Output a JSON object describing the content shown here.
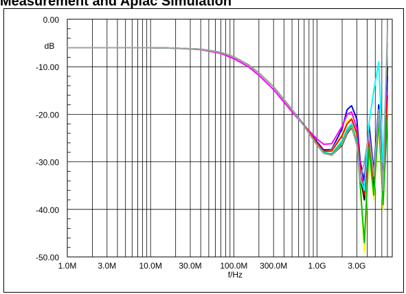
{
  "title": "Measurement and Aplac Simulation",
  "chart_data": {
    "type": "line",
    "xlabel": "f/Hz",
    "ylabel": "dB",
    "xscale": "log",
    "xlim": [
      1000000,
      8000000000
    ],
    "ylim": [
      -50,
      0
    ],
    "grid": true,
    "x_tick_labels": [
      "1.0M",
      "3.0M",
      "10.0M",
      "30.0M",
      "100.0M",
      "300.0M",
      "1.0G",
      "3.0G"
    ],
    "x_ticks": [
      1000000,
      3000000,
      10000000,
      30000000,
      100000000,
      300000000,
      1000000000,
      3000000000
    ],
    "y_tick_labels": [
      "0.00",
      "-10.00",
      "-20.00",
      "-30.00",
      "-40.00",
      "-50.00"
    ],
    "y_ticks": [
      0,
      -10,
      -20,
      -30,
      -40,
      -50
    ],
    "series": [
      {
        "color": "#000000",
        "x": [
          1000000,
          10000000,
          20000000,
          40000000,
          70000000,
          100000000,
          150000000,
          200000000,
          300000000,
          500000000,
          700000000,
          1000000000,
          1200000000,
          1500000000,
          2000000000,
          2300000000,
          2600000000,
          3000000000,
          3300000000,
          3700000000,
          4200000000,
          4800000000,
          5500000000,
          6200000000,
          7000000000
        ],
        "y": [
          -6.0,
          -6.0,
          -6.1,
          -6.3,
          -7.0,
          -7.9,
          -9.6,
          -11.3,
          -14.2,
          -19.0,
          -22.5,
          -26.5,
          -28.2,
          -28.6,
          -26.5,
          -24.0,
          -22.8,
          -26.0,
          -33.0,
          -38.0,
          -25.0,
          -36.0,
          -20.0,
          -38.0,
          -10.0
        ]
      },
      {
        "color": "#0000ff",
        "x": [
          1000000,
          10000000,
          20000000,
          40000000,
          70000000,
          100000000,
          150000000,
          200000000,
          300000000,
          500000000,
          700000000,
          1000000000,
          1200000000,
          1500000000,
          2000000000,
          2300000000,
          2600000000,
          3000000000,
          3300000000,
          3700000000,
          4200000000,
          4800000000,
          5500000000,
          6200000000,
          7000000000
        ],
        "y": [
          -6.0,
          -6.0,
          -6.1,
          -6.3,
          -7.0,
          -7.9,
          -9.6,
          -11.3,
          -14.2,
          -19.0,
          -22.3,
          -25.8,
          -27.5,
          -27.4,
          -23.0,
          -19.0,
          -18.2,
          -21.0,
          -30.0,
          -34.0,
          -22.0,
          -32.0,
          -18.0,
          -34.0,
          -12.0
        ]
      },
      {
        "color": "#ff00ff",
        "x": [
          1000000,
          10000000,
          20000000,
          40000000,
          70000000,
          100000000,
          150000000,
          200000000,
          300000000,
          500000000,
          700000000,
          1000000000,
          1200000000,
          1500000000,
          2000000000,
          2300000000,
          2600000000,
          3000000000,
          3300000000,
          3700000000,
          4200000000,
          4800000000,
          5500000000,
          6200000000,
          7000000000
        ],
        "y": [
          -6.0,
          -6.0,
          -6.1,
          -6.4,
          -7.2,
          -8.3,
          -10.0,
          -11.8,
          -14.8,
          -19.5,
          -22.4,
          -25.2,
          -26.3,
          -26.2,
          -22.5,
          -20.0,
          -19.5,
          -23.0,
          -31.0,
          -36.0,
          -24.0,
          -33.0,
          -20.0,
          -35.0,
          -15.0
        ]
      },
      {
        "color": "#ffff00",
        "x": [
          1000000,
          10000000,
          20000000,
          40000000,
          70000000,
          100000000,
          150000000,
          200000000,
          300000000,
          500000000,
          700000000,
          1000000000,
          1200000000,
          1500000000,
          2000000000,
          2300000000,
          2600000000,
          3000000000,
          3300000000,
          3700000000,
          4200000000,
          4800000000,
          5500000000,
          6200000000,
          7000000000
        ],
        "y": [
          -6.0,
          -6.0,
          -6.1,
          -6.3,
          -7.0,
          -7.9,
          -9.6,
          -11.3,
          -14.2,
          -19.0,
          -22.4,
          -26.0,
          -27.8,
          -27.6,
          -24.0,
          -21.5,
          -20.8,
          -25.0,
          -35.0,
          -49.0,
          -28.0,
          -38.0,
          -22.0,
          -40.0,
          -18.0
        ]
      },
      {
        "color": "#ff0000",
        "x": [
          1000000,
          10000000,
          20000000,
          40000000,
          70000000,
          100000000,
          150000000,
          200000000,
          300000000,
          500000000,
          700000000,
          1000000000,
          1200000000,
          1500000000,
          2000000000,
          2300000000,
          2600000000,
          3000000000,
          3300000000,
          3700000000,
          4200000000,
          4800000000,
          5500000000,
          6200000000,
          7000000000
        ],
        "y": [
          -6.0,
          -6.0,
          -6.1,
          -6.3,
          -7.0,
          -7.9,
          -9.6,
          -11.3,
          -14.2,
          -19.0,
          -22.4,
          -26.0,
          -27.8,
          -27.7,
          -24.5,
          -22.0,
          -21.0,
          -24.0,
          -32.0,
          -37.0,
          -26.0,
          -34.0,
          -21.0,
          -36.0,
          -16.0
        ]
      },
      {
        "color": "#00ffff",
        "x": [
          1000000,
          10000000,
          20000000,
          40000000,
          70000000,
          100000000,
          150000000,
          200000000,
          300000000,
          500000000,
          700000000,
          1000000000,
          1200000000,
          1500000000,
          2000000000,
          2300000000,
          2600000000,
          3000000000,
          3300000000,
          3700000000,
          4200000000,
          4800000000,
          5500000000,
          6200000000,
          7000000000
        ],
        "y": [
          -6.0,
          -6.0,
          -6.1,
          -6.3,
          -7.0,
          -7.9,
          -9.6,
          -11.3,
          -14.2,
          -19.0,
          -22.5,
          -26.4,
          -28.0,
          -28.3,
          -25.5,
          -23.0,
          -22.0,
          -25.5,
          -33.5,
          -36.0,
          -22.0,
          -15.0,
          -9.0,
          -30.0,
          -5.0
        ]
      },
      {
        "color": "#00c000",
        "x": [
          1000000,
          10000000,
          20000000,
          40000000,
          70000000,
          100000000,
          150000000,
          200000000,
          300000000,
          500000000,
          700000000,
          1000000000,
          1200000000,
          1500000000,
          2000000000,
          2300000000,
          2600000000,
          3000000000,
          3300000000,
          3700000000,
          4200000000,
          4800000000,
          5500000000,
          6200000000,
          7000000000
        ],
        "y": [
          -6.0,
          -6.0,
          -6.1,
          -6.3,
          -7.0,
          -7.9,
          -9.6,
          -11.3,
          -14.2,
          -19.0,
          -22.5,
          -26.4,
          -28.1,
          -28.4,
          -26.0,
          -23.5,
          -22.4,
          -26.0,
          -35.0,
          -47.0,
          -27.0,
          -37.0,
          -21.0,
          -39.0,
          -20.0
        ]
      },
      {
        "color": "#a0a0a0",
        "x": [
          1000000,
          10000000,
          20000000,
          40000000,
          70000000,
          100000000,
          150000000,
          200000000,
          300000000,
          500000000,
          700000000,
          1000000000,
          1200000000,
          1500000000,
          2000000000,
          2300000000,
          2600000000,
          3000000000,
          3300000000,
          3700000000,
          4200000000,
          4800000000,
          5500000000,
          6200000000,
          7000000000
        ],
        "y": [
          -6.0,
          -6.0,
          -6.1,
          -6.3,
          -7.0,
          -7.9,
          -9.6,
          -11.3,
          -14.2,
          -19.0,
          -22.5,
          -26.5,
          -28.2,
          -28.6,
          -26.3,
          -23.8,
          -22.6,
          -26.5,
          -34.0,
          -30.0,
          -24.0,
          -33.0,
          -19.0,
          -36.0,
          -2.0
        ]
      }
    ]
  }
}
